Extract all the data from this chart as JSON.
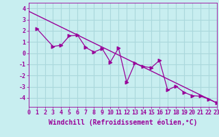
{
  "xlabel": "Windchill (Refroidissement éolien,°C)",
  "bg_color": "#c8eef0",
  "grid_color": "#aad8dc",
  "line_color": "#990099",
  "xlim": [
    0,
    23
  ],
  "ylim": [
    -4.8,
    4.5
  ],
  "yticks": [
    -4,
    -3,
    -2,
    -1,
    0,
    1,
    2,
    3,
    4
  ],
  "xticks": [
    0,
    1,
    2,
    3,
    4,
    5,
    6,
    7,
    8,
    9,
    10,
    11,
    12,
    13,
    14,
    15,
    16,
    17,
    18,
    19,
    20,
    21,
    22,
    23
  ],
  "trend_x": [
    0,
    23
  ],
  "trend_y": [
    3.75,
    -4.45
  ],
  "line_x": [
    1,
    3,
    4,
    5,
    6,
    7,
    8,
    9,
    10,
    11,
    12,
    13,
    14,
    15,
    16,
    17,
    18,
    19,
    20,
    21,
    22,
    23
  ],
  "line_y": [
    2.2,
    0.6,
    0.7,
    1.55,
    1.6,
    0.5,
    0.1,
    0.4,
    -0.8,
    0.45,
    -2.6,
    -0.9,
    -1.2,
    -1.3,
    -0.65,
    -3.3,
    -2.95,
    -3.5,
    -3.8,
    -3.85,
    -4.1,
    -4.45
  ],
  "tick_fontsize": 6,
  "label_fontsize": 7
}
